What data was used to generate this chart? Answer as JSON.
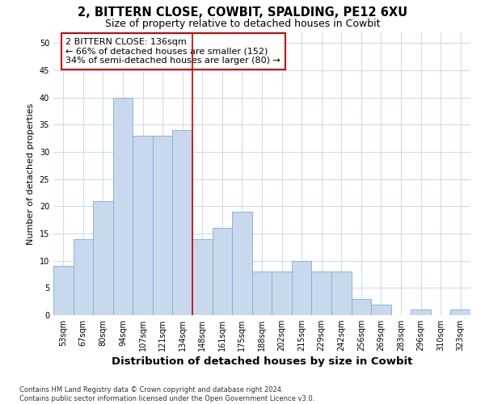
{
  "title": "2, BITTERN CLOSE, COWBIT, SPALDING, PE12 6XU",
  "subtitle": "Size of property relative to detached houses in Cowbit",
  "xlabel": "Distribution of detached houses by size in Cowbit",
  "ylabel": "Number of detached properties",
  "categories": [
    "53sqm",
    "67sqm",
    "80sqm",
    "94sqm",
    "107sqm",
    "121sqm",
    "134sqm",
    "148sqm",
    "161sqm",
    "175sqm",
    "188sqm",
    "202sqm",
    "215sqm",
    "229sqm",
    "242sqm",
    "256sqm",
    "269sqm",
    "283sqm",
    "296sqm",
    "310sqm",
    "323sqm"
  ],
  "values": [
    9,
    14,
    21,
    40,
    33,
    33,
    34,
    14,
    16,
    19,
    8,
    8,
    10,
    8,
    8,
    3,
    2,
    0,
    1,
    0,
    1
  ],
  "bar_color": "#c8d8ed",
  "bar_edge_color": "#7aafd4",
  "vline_x": 6.5,
  "vline_color": "#cc0000",
  "annotation_text": "2 BITTERN CLOSE: 136sqm\n← 66% of detached houses are smaller (152)\n34% of semi-detached houses are larger (80) →",
  "annotation_box_color": "#ffffff",
  "annotation_box_edge_color": "#cc0000",
  "ylim": [
    0,
    52
  ],
  "yticks": [
    0,
    5,
    10,
    15,
    20,
    25,
    30,
    35,
    40,
    45,
    50
  ],
  "footer": "Contains HM Land Registry data © Crown copyright and database right 2024.\nContains public sector information licensed under the Open Government Licence v3.0.",
  "bg_color": "#ffffff",
  "grid_color": "#d0dce8",
  "title_fontsize": 10.5,
  "subtitle_fontsize": 9,
  "xlabel_fontsize": 9.5,
  "ylabel_fontsize": 8,
  "tick_fontsize": 7,
  "annotation_fontsize": 8,
  "footer_fontsize": 6
}
